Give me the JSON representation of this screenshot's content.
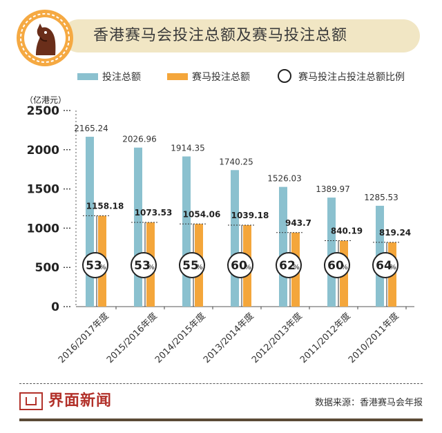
{
  "header": {
    "title": "香港赛马会投注总额及赛马投注总额"
  },
  "badge": {
    "icon": "horse-head-icon"
  },
  "legend": {
    "items": [
      {
        "label": "投注总额",
        "color": "#8bc1cf"
      },
      {
        "label": "赛马投注总额",
        "color": "#f4a63b"
      },
      {
        "label": "赛马投注占投注总额比例"
      }
    ]
  },
  "chart_data": {
    "type": "bar",
    "unit_label": "（亿港元）",
    "ylim": [
      0,
      2500
    ],
    "yticks": [
      0,
      500,
      1000,
      1500,
      2000,
      2500
    ],
    "categories": [
      "2016/2017年度",
      "2015/2016年度",
      "2014/2015年度",
      "2013/2014年度",
      "2012/2013年度",
      "2011/2012年度",
      "2010/2011年度"
    ],
    "series": [
      {
        "name": "投注总额",
        "color": "#8bc1cf",
        "values": [
          2165.24,
          2026.96,
          1914.35,
          1740.25,
          1526.03,
          1389.97,
          1285.53
        ],
        "labels": [
          "2165.24",
          "2026.96",
          "1914.35",
          "1740.25",
          "1526.03",
          "1389.97",
          "1285.53"
        ]
      },
      {
        "name": "赛马投注总额",
        "color": "#f4a63b",
        "values": [
          1158.18,
          1073.53,
          1054.06,
          1039.18,
          943.7,
          840.19,
          819.24
        ],
        "labels": [
          "1158.18",
          "1073.53",
          "1054.06",
          "1039.18",
          "943.7",
          "840.19",
          "819.24"
        ]
      }
    ],
    "ratio": {
      "name": "赛马投注占投注总额比例",
      "values": [
        "53",
        "53",
        "55",
        "60",
        "62",
        "60",
        "64"
      ],
      "suffix": "%"
    },
    "grid": false
  },
  "footer": {
    "logo_text": "界面新闻",
    "source": "数据来源：香港赛马会年报"
  }
}
